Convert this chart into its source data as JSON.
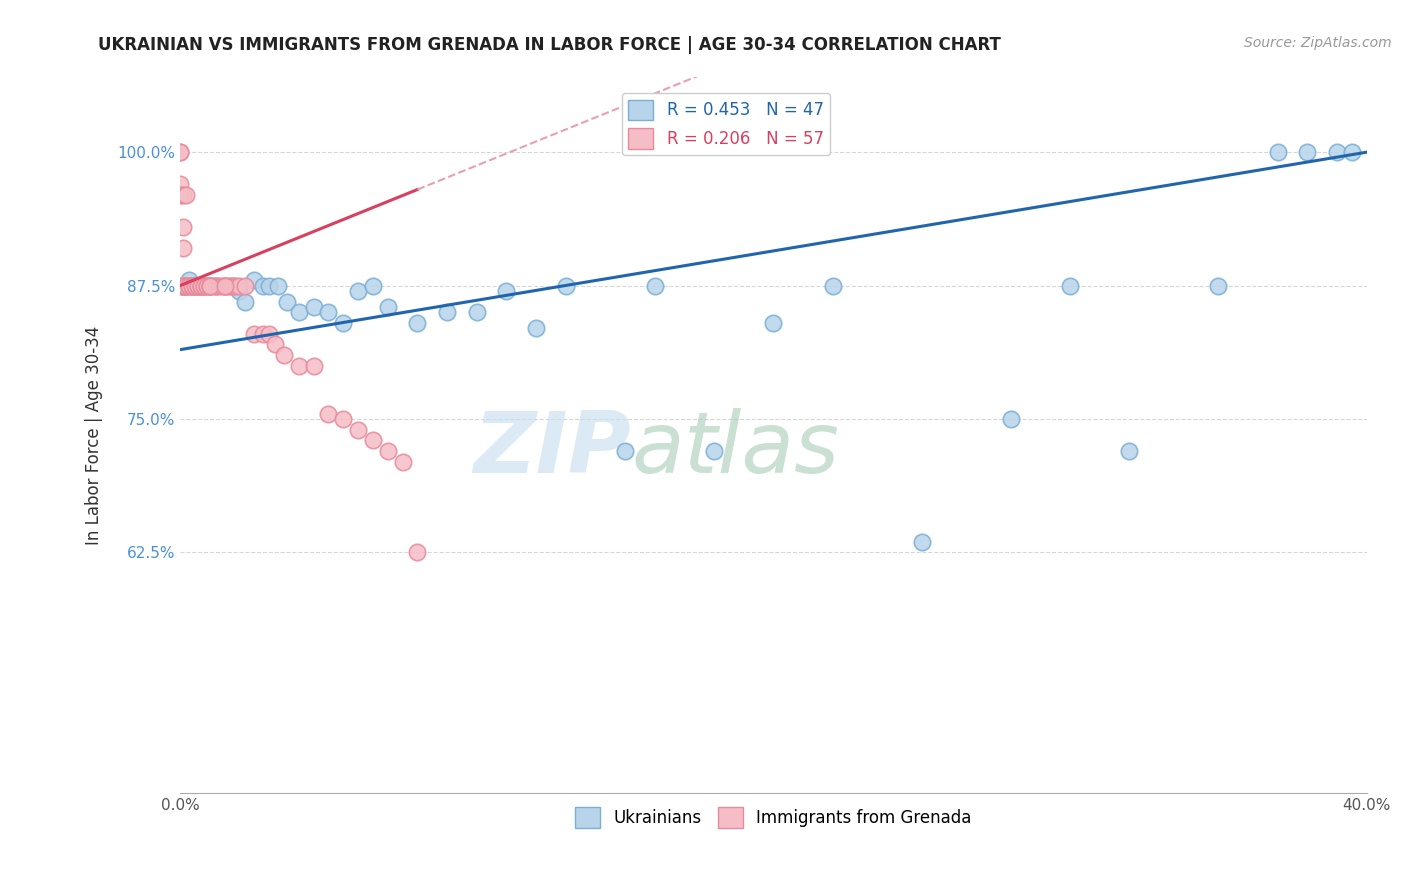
{
  "title": "UKRAINIAN VS IMMIGRANTS FROM GRENADA IN LABOR FORCE | AGE 30-34 CORRELATION CHART",
  "source_text": "Source: ZipAtlas.com",
  "ylabel": "In Labor Force | Age 30-34",
  "xlim": [
    0.0,
    0.4
  ],
  "ylim": [
    0.4,
    1.07
  ],
  "blue_R": 0.453,
  "blue_N": 47,
  "pink_R": 0.206,
  "pink_N": 57,
  "blue_color": "#b8d4ea",
  "blue_edge": "#7aafd4",
  "pink_color": "#f5bdc6",
  "pink_edge": "#e88a9a",
  "blue_trend_color": "#2166ac",
  "pink_trend_color": "#d94060",
  "pink_dash_color": "#e8a0b0",
  "watermark_zip": "ZIP",
  "watermark_atlas": "atlas",
  "blue_scatter_x": [
    0.001,
    0.001,
    0.002,
    0.003,
    0.004,
    0.005,
    0.006,
    0.007,
    0.008,
    0.01,
    0.012,
    0.015,
    0.018,
    0.02,
    0.022,
    0.025,
    0.028,
    0.03,
    0.033,
    0.036,
    0.04,
    0.045,
    0.05,
    0.055,
    0.06,
    0.065,
    0.07,
    0.08,
    0.09,
    0.1,
    0.11,
    0.12,
    0.13,
    0.15,
    0.16,
    0.18,
    0.2,
    0.22,
    0.25,
    0.28,
    0.3,
    0.32,
    0.35,
    0.37,
    0.38,
    0.39,
    0.395
  ],
  "blue_scatter_y": [
    0.875,
    0.875,
    0.875,
    0.88,
    0.875,
    0.875,
    0.875,
    0.875,
    0.875,
    0.875,
    0.875,
    0.875,
    0.875,
    0.87,
    0.86,
    0.88,
    0.875,
    0.875,
    0.875,
    0.86,
    0.85,
    0.855,
    0.85,
    0.84,
    0.87,
    0.875,
    0.855,
    0.84,
    0.85,
    0.85,
    0.87,
    0.835,
    0.875,
    0.72,
    0.875,
    0.72,
    0.84,
    0.875,
    0.635,
    0.75,
    0.875,
    0.72,
    0.875,
    1.0,
    1.0,
    1.0,
    1.0
  ],
  "pink_scatter_x": [
    0.0,
    0.0,
    0.0,
    0.0,
    0.0,
    0.001,
    0.001,
    0.001,
    0.001,
    0.001,
    0.002,
    0.002,
    0.002,
    0.003,
    0.003,
    0.004,
    0.004,
    0.005,
    0.005,
    0.006,
    0.006,
    0.007,
    0.007,
    0.007,
    0.008,
    0.008,
    0.009,
    0.009,
    0.01,
    0.01,
    0.011,
    0.012,
    0.013,
    0.014,
    0.015,
    0.016,
    0.017,
    0.018,
    0.019,
    0.02,
    0.022,
    0.025,
    0.028,
    0.03,
    0.032,
    0.035,
    0.04,
    0.045,
    0.05,
    0.055,
    0.06,
    0.065,
    0.07,
    0.075,
    0.08,
    0.01,
    0.015
  ],
  "pink_scatter_y": [
    1.0,
    1.0,
    0.97,
    0.96,
    0.875,
    0.96,
    0.93,
    0.91,
    0.875,
    0.875,
    0.96,
    0.875,
    0.875,
    0.875,
    0.875,
    0.875,
    0.875,
    0.875,
    0.875,
    0.875,
    0.875,
    0.875,
    0.875,
    0.875,
    0.875,
    0.875,
    0.875,
    0.875,
    0.875,
    0.875,
    0.875,
    0.875,
    0.875,
    0.875,
    0.875,
    0.875,
    0.875,
    0.875,
    0.875,
    0.875,
    0.875,
    0.83,
    0.83,
    0.83,
    0.82,
    0.81,
    0.8,
    0.8,
    0.755,
    0.75,
    0.74,
    0.73,
    0.72,
    0.71,
    0.625,
    0.875,
    0.875
  ]
}
